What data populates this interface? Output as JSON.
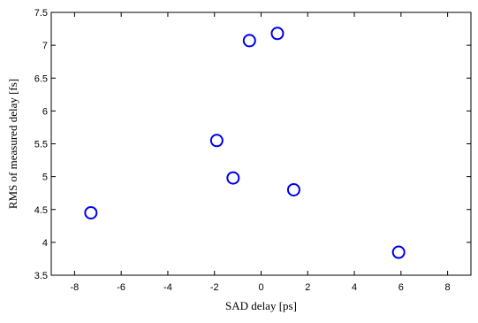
{
  "chart_data": {
    "type": "scatter",
    "title": "",
    "xlabel": "SAD delay [ps]",
    "ylabel": "RMS of measured delay [fs]",
    "xlim": [
      -9,
      9
    ],
    "ylim": [
      3.5,
      7.5
    ],
    "xticks": [
      -8,
      -6,
      -4,
      -2,
      0,
      2,
      4,
      6,
      8
    ],
    "xtick_labels": [
      "-8",
      "-6",
      "-4",
      "-2",
      "0",
      "2",
      "4",
      "6",
      "8"
    ],
    "yticks": [
      3.5,
      4,
      4.5,
      5,
      5.5,
      6,
      6.5,
      7,
      7.5
    ],
    "ytick_labels": [
      "3.5",
      "4",
      "4.5",
      "5",
      "5.5",
      "6",
      "6.5",
      "7",
      "7.5"
    ],
    "grid": false,
    "marker": "open-circle",
    "marker_color": "#0000ee",
    "points": [
      {
        "x": -7.3,
        "y": 4.45
      },
      {
        "x": -1.9,
        "y": 5.55
      },
      {
        "x": -1.2,
        "y": 4.98
      },
      {
        "x": -0.5,
        "y": 7.07
      },
      {
        "x": 0.7,
        "y": 7.18
      },
      {
        "x": 1.4,
        "y": 4.8
      },
      {
        "x": 5.9,
        "y": 3.85
      }
    ]
  }
}
